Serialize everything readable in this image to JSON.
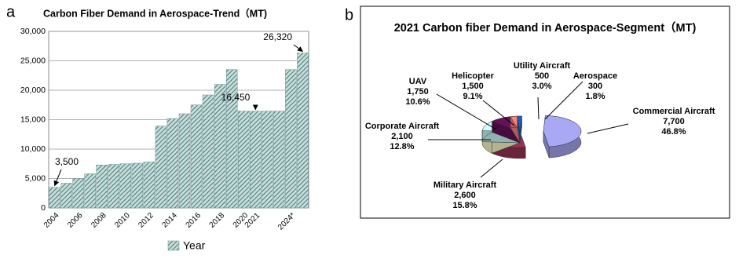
{
  "chart_data": [
    {
      "type": "bar",
      "panel": "a",
      "title": "Carbon Fiber Demand in Aerospace-Trend（MT)",
      "categories": [
        "2004",
        null,
        "2006",
        null,
        "2008",
        null,
        "2010",
        null,
        "2012",
        null,
        "2014",
        null,
        "2016",
        null,
        "2018",
        null,
        "2020",
        "2021",
        null,
        null,
        "2024*",
        null
      ],
      "series": [
        {
          "name": "Year",
          "color": "#4f7f7c",
          "values": [
            3500,
            4200,
            5000,
            5800,
            7300,
            7400,
            7500,
            7600,
            7800,
            13900,
            15200,
            16000,
            17500,
            19200,
            21000,
            23500,
            16450,
            16450,
            16450,
            16450,
            23500,
            26320
          ]
        }
      ],
      "ylim": [
        0,
        30000
      ],
      "yticks": [
        0,
        {
          "value": 5000,
          "label": "5,000"
        },
        {
          "value": 10000,
          "label": "10,000"
        },
        {
          "value": 15000,
          "label": "15,000"
        },
        {
          "value": 20000,
          "label": "20,000"
        },
        {
          "value": 25000,
          "label": "25,000"
        },
        {
          "value": 30000,
          "label": "30,000"
        }
      ],
      "grid": true,
      "annotations": [
        "3,500",
        "16,450",
        "26,320"
      ]
    },
    {
      "type": "pie",
      "panel": "b",
      "title": "2021 Carbon fiber Demand in Aerospace-Segment（MT)",
      "categories": [
        "Commercial Aircraft",
        "Military Aircraft",
        "Corporate Aircraft",
        "UAV",
        "Helicopter",
        "Utility Aircraft",
        "Aerospace"
      ],
      "values": [
        7700,
        2600,
        2100,
        1750,
        1500,
        500,
        300
      ],
      "value_labels": [
        "7,700",
        "2,600",
        "2,100",
        "1,750",
        "1,500",
        "500",
        "300"
      ],
      "percent_labels": [
        "46.8%",
        "15.8%",
        "12.8%",
        "10.6%",
        "9.1%",
        "3.0%",
        "1.8%"
      ],
      "colors": [
        "#a8a8f4",
        "#993355",
        "#ffffcc",
        "#ccffff",
        "#66105a",
        "#ff8080",
        "#1f5fbf"
      ]
    }
  ]
}
